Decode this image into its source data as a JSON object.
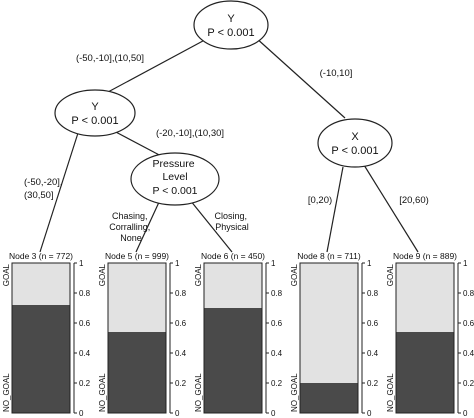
{
  "colors": {
    "goal": "#e2e2e2",
    "no_goal": "#4a4a4a",
    "line": "#222222"
  },
  "inner_nodes": [
    {
      "id": "n1",
      "name": "Y",
      "pvalue": "P < 0.001"
    },
    {
      "id": "n2",
      "name": "Y",
      "pvalue": "P < 0.001"
    },
    {
      "id": "n4",
      "name_lines": [
        "Pressure",
        "Level"
      ],
      "pvalue": "P < 0.001"
    },
    {
      "id": "n7",
      "name": "X",
      "pvalue": "P < 0.001"
    }
  ],
  "edges": [
    {
      "id": "e1-2",
      "lines": [
        "(-50,-10],(10,50]"
      ]
    },
    {
      "id": "e1-7",
      "lines": [
        "(-10,10]"
      ]
    },
    {
      "id": "e2-3",
      "lines": [
        "(-50,-20],",
        "(30,50]"
      ]
    },
    {
      "id": "e2-4",
      "lines": [
        "(-20,-10],(10,30]"
      ]
    },
    {
      "id": "e4-5",
      "lines": [
        "Chasing,",
        "Corralling,",
        "None"
      ]
    },
    {
      "id": "e4-6",
      "lines": [
        "Closing,",
        "Physical"
      ]
    },
    {
      "id": "e7-8",
      "lines": [
        "[0,20)"
      ]
    },
    {
      "id": "e7-9",
      "lines": [
        "[20,60)"
      ]
    }
  ],
  "terminal_nodes": [
    {
      "id": "n3",
      "label": "Node 3 (n = 772)",
      "no_goal": 0.72
    },
    {
      "id": "n5",
      "label": "Node 5 (n = 999)",
      "no_goal": 0.54
    },
    {
      "id": "n6",
      "label": "Node 6 (n = 450)",
      "no_goal": 0.7
    },
    {
      "id": "n8",
      "label": "Node 8 (n = 711)",
      "no_goal": 0.2
    },
    {
      "id": "n9",
      "label": "Node 9 (n = 889)",
      "no_goal": 0.54
    }
  ],
  "axis": {
    "ticks": [
      "0",
      "0.2",
      "0.4",
      "0.6",
      "0.8",
      "1"
    ],
    "tick_values": [
      0,
      0.2,
      0.4,
      0.6,
      0.8,
      1
    ],
    "top_label": "GOAL",
    "bottom_label": "NO_GOAL"
  }
}
